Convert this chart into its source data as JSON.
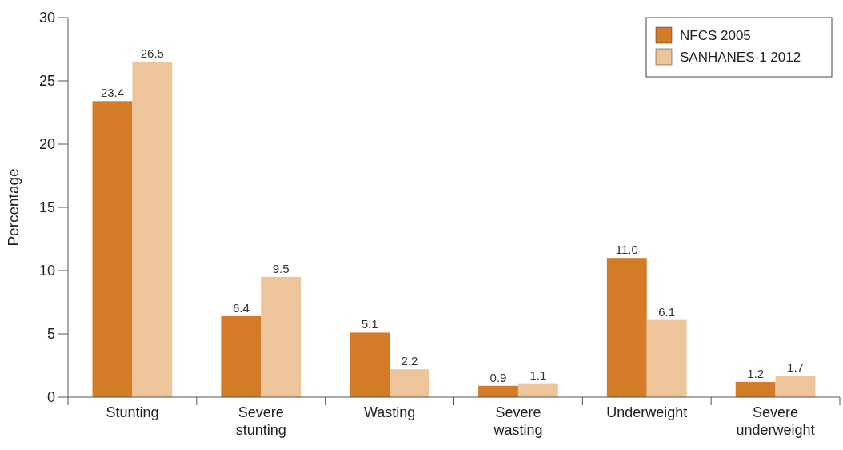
{
  "chart_data": {
    "type": "bar",
    "ylabel": "Percentage",
    "categories": [
      "Stunting",
      "Severe stunting",
      "Wasting",
      "Severe wasting",
      "Underweight",
      "Severe underweight"
    ],
    "series": [
      {
        "name": "NFCS 2005",
        "color": "#d47b28",
        "values": [
          23.4,
          6.4,
          5.1,
          0.9,
          11.0,
          1.2
        ],
        "value_labels": [
          "23.4",
          "6.4",
          "5.1",
          "0.9",
          "11.0",
          "1.2"
        ]
      },
      {
        "name": "SANHANES-1 2012",
        "color": "#eec49b",
        "values": [
          26.5,
          9.5,
          2.2,
          1.1,
          6.1,
          1.7
        ]
      }
    ],
    "ylim": [
      0,
      30
    ],
    "yticks": [
      0,
      5,
      10,
      15,
      20,
      25,
      30
    ],
    "grid": false,
    "legend": "top right",
    "data_labels": true
  }
}
